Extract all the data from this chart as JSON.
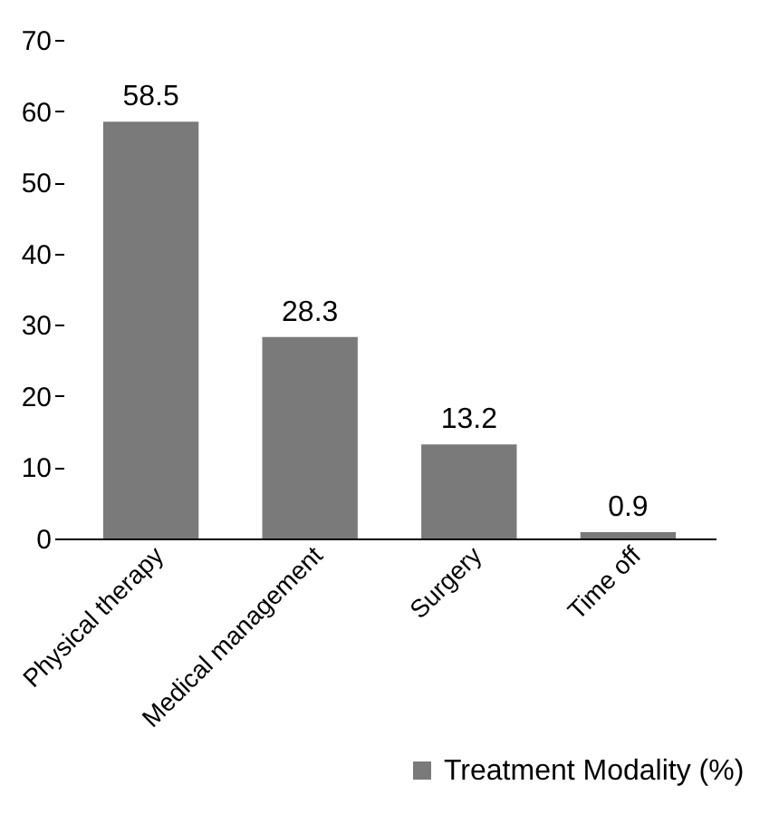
{
  "chart_data": {
    "type": "bar",
    "categories": [
      "Physical therapy",
      "Medical management",
      "Surgery",
      "Time off"
    ],
    "series": [
      {
        "name": "Treatment Modality (%)",
        "color": "#7a7a7a",
        "values": [
          58.5,
          28.3,
          13.2,
          0.9
        ]
      }
    ],
    "ylim": [
      0,
      70
    ],
    "yticks": [
      0,
      10,
      20,
      30,
      40,
      50,
      60,
      70
    ],
    "grid": false,
    "data_labels": true,
    "legend": "bottom right"
  }
}
